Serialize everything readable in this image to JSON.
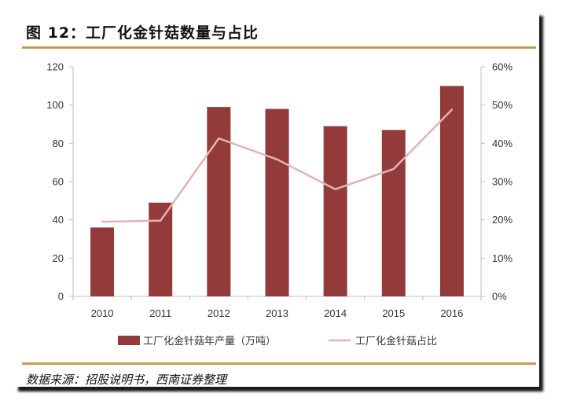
{
  "header": {
    "title": "图 12：工厂化金针菇数量与占比"
  },
  "footer": {
    "source": "数据来源：招股说明书，西南证券整理"
  },
  "colors": {
    "bar": "#933a3a",
    "line": "#e1b4b4",
    "rule": "#c89a58"
  },
  "chart_data": {
    "type": "bar",
    "categories": [
      "2010",
      "2011",
      "2012",
      "2013",
      "2014",
      "2015",
      "2016"
    ],
    "series": [
      {
        "name": "工厂化金针菇年产量（万吨）",
        "type": "bar",
        "axis": "left",
        "values": [
          36,
          49,
          99,
          98,
          89,
          87,
          110
        ]
      },
      {
        "name": "工厂化金针菇占比",
        "type": "line",
        "axis": "right",
        "values": [
          0.195,
          0.198,
          0.413,
          0.358,
          0.28,
          0.333,
          0.488
        ]
      }
    ],
    "y_left": {
      "min": 0,
      "max": 120,
      "ticks": [
        0,
        20,
        40,
        60,
        80,
        100,
        120
      ],
      "tick_labels": [
        "0",
        "20",
        "40",
        "60",
        "80",
        "100",
        "120"
      ]
    },
    "y_right": {
      "min": 0,
      "max": 0.6,
      "ticks": [
        0,
        0.1,
        0.2,
        0.3,
        0.4,
        0.5,
        0.6
      ],
      "tick_labels": [
        "0%",
        "10%",
        "20%",
        "30%",
        "40%",
        "50%",
        "60%"
      ]
    },
    "grid": false,
    "legend_position": "bottom"
  }
}
